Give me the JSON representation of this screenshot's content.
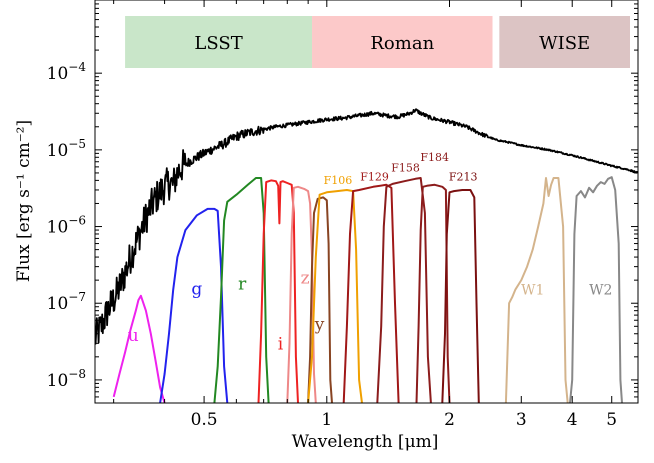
{
  "chart_data": {
    "type": "line",
    "xlabel": "Wavelength [μm]",
    "ylabel": "Flux [erg s⁻¹ cm⁻²]",
    "x_scale": "log",
    "y_scale": "log",
    "xlim": [
      0.27,
      5.8
    ],
    "ylim": [
      5e-09,
      0.0009
    ],
    "x_ticks": [
      {
        "value": 0.5,
        "label": "0.5"
      },
      {
        "value": 1,
        "label": "1"
      },
      {
        "value": 2,
        "label": "2"
      },
      {
        "value": 3,
        "label": "3"
      },
      {
        "value": 4,
        "label": "4"
      },
      {
        "value": 5,
        "label": "5"
      }
    ],
    "y_ticks": [
      {
        "value": 1e-08,
        "base": "10",
        "exp": "−8"
      },
      {
        "value": 1e-07,
        "base": "10",
        "exp": "−7"
      },
      {
        "value": 1e-06,
        "base": "10",
        "exp": "−6"
      },
      {
        "value": 1e-05,
        "base": "10",
        "exp": "−5"
      },
      {
        "value": 0.0001,
        "base": "10",
        "exp": "−4"
      }
    ],
    "bands": [
      {
        "label": "LSST",
        "x0": 0.32,
        "x1": 0.92,
        "color": "#c9e6c9"
      },
      {
        "label": "Roman",
        "x0": 0.92,
        "x1": 2.55,
        "color": "#fcc9c9"
      },
      {
        "label": "WISE",
        "x0": 2.65,
        "x1": 5.8,
        "color": "#dcc4c4"
      }
    ],
    "spectrum": {
      "color": "#000000",
      "x": [
        0.27,
        0.28,
        0.29,
        0.3,
        0.31,
        0.32,
        0.33,
        0.34,
        0.35,
        0.36,
        0.37,
        0.38,
        0.39,
        0.4,
        0.41,
        0.42,
        0.43,
        0.44,
        0.46,
        0.48,
        0.5,
        0.53,
        0.56,
        0.6,
        0.65,
        0.7,
        0.75,
        0.8,
        0.9,
        1.0,
        1.1,
        1.2,
        1.3,
        1.4,
        1.5,
        1.6,
        1.65,
        1.7,
        1.8,
        2.0,
        2.2,
        2.4,
        2.6,
        2.8,
        3.0,
        3.5,
        4.0,
        4.5,
        5.0,
        5.5,
        5.8
      ],
      "y": [
        3.5e-08,
        5e-08,
        8e-08,
        1.1e-07,
        1.6e-07,
        2.5e-07,
        4e-07,
        6e-07,
        9e-07,
        1.3e-06,
        1.8e-06,
        2.3e-06,
        2.8e-06,
        3.3e-06,
        3.7e-06,
        3.5e-06,
        5e-06,
        6e-06,
        7e-06,
        8e-06,
        9e-06,
        1.05e-05,
        1.2e-05,
        1.5e-05,
        1.7e-05,
        1.85e-05,
        2e-05,
        2.1e-05,
        2.3e-05,
        2.5e-05,
        2.6e-05,
        2.8e-05,
        3e-05,
        2.8e-05,
        2.7e-05,
        3e-05,
        3.3e-05,
        3e-05,
        2.6e-05,
        2.3e-05,
        2e-05,
        1.6e-05,
        1.35e-05,
        1.25e-05,
        1.15e-05,
        1e-05,
        8.5e-06,
        7.2e-06,
        6.2e-06,
        5.5e-06,
        5e-06
      ]
    },
    "filters": [
      {
        "name": "u",
        "color": "#ee22ee",
        "label_x": 0.335,
        "label_y": 3.2e-08,
        "label_size": 17,
        "x": [
          0.3,
          0.31,
          0.32,
          0.33,
          0.34,
          0.345,
          0.35,
          0.36,
          0.37,
          0.38,
          0.39,
          0.4
        ],
        "y": [
          6e-09,
          1.2e-08,
          2.3e-08,
          4.5e-08,
          8e-08,
          1.1e-07,
          1.25e-07,
          8e-08,
          4e-08,
          1.8e-08,
          8e-09,
          5e-09
        ]
      },
      {
        "name": "g",
        "color": "#2222ee",
        "label_x": 0.48,
        "label_y": 1.3e-07,
        "label_size": 17,
        "x": [
          0.39,
          0.4,
          0.41,
          0.42,
          0.43,
          0.45,
          0.48,
          0.51,
          0.53,
          0.54,
          0.55,
          0.56,
          0.57
        ],
        "y": [
          5e-09,
          1.2e-08,
          4e-08,
          1.5e-07,
          4e-07,
          9e-07,
          1.4e-06,
          1.7e-06,
          1.7e-06,
          1.6e-06,
          3e-07,
          1.5e-08,
          5e-09
        ]
      },
      {
        "name": "r",
        "color": "#228822",
        "label_x": 0.62,
        "label_y": 1.5e-07,
        "label_size": 17,
        "x": [
          0.53,
          0.54,
          0.55,
          0.56,
          0.57,
          0.6,
          0.64,
          0.67,
          0.69,
          0.7,
          0.71,
          0.72
        ],
        "y": [
          5e-09,
          1.5e-08,
          1.2e-07,
          1.2e-06,
          2.1e-06,
          2.6e-06,
          3.5e-06,
          4.3e-06,
          4.3e-06,
          1.5e-06,
          2e-08,
          5e-09
        ]
      },
      {
        "name": "i",
        "color": "#ee2222",
        "label_x": 0.77,
        "label_y": 2.5e-08,
        "label_size": 17,
        "x": [
          0.68,
          0.69,
          0.7,
          0.71,
          0.73,
          0.75,
          0.76,
          0.765,
          0.77,
          0.78,
          0.8,
          0.82,
          0.83,
          0.84,
          0.85
        ],
        "y": [
          5e-09,
          4e-08,
          8e-07,
          3.8e-06,
          4e-06,
          3.9e-06,
          3.4e-06,
          1.1e-06,
          3.8e-06,
          3.9e-06,
          3.7e-06,
          3.5e-06,
          1.5e-06,
          2e-08,
          5e-09
        ]
      },
      {
        "name": "z",
        "color": "#ee8888",
        "label_x": 0.885,
        "label_y": 1.8e-07,
        "label_size": 17,
        "x": [
          0.8,
          0.81,
          0.82,
          0.83,
          0.85,
          0.88,
          0.9,
          0.91,
          0.92,
          0.93,
          0.94
        ],
        "y": [
          5e-09,
          3e-08,
          8e-07,
          3.2e-06,
          3.3e-06,
          3.1e-06,
          2.9e-06,
          2e-06,
          4e-07,
          1.2e-08,
          5e-09
        ]
      },
      {
        "name": "y",
        "color": "#884422",
        "label_x": 0.96,
        "label_y": 4.5e-08,
        "label_size": 17,
        "x": [
          0.9,
          0.91,
          0.92,
          0.93,
          0.95,
          0.98,
          1.0,
          1.01,
          1.02,
          1.03
        ],
        "y": [
          5e-09,
          2e-08,
          3e-07,
          1.5e-06,
          2.3e-06,
          2.4e-06,
          2.2e-06,
          6e-07,
          1e-08,
          5e-09
        ]
      },
      {
        "name": "F106",
        "color": "#f0a000",
        "label_x": 1.065,
        "label_y": 3.6e-06,
        "label_size": 11,
        "x": [
          0.9,
          0.92,
          0.94,
          0.96,
          1.0,
          1.06,
          1.12,
          1.16,
          1.18,
          1.2,
          1.22
        ],
        "y": [
          5e-09,
          2e-08,
          4e-07,
          2.6e-06,
          2.8e-06,
          2.9e-06,
          3e-06,
          2.9e-06,
          5e-07,
          1e-08,
          5e-09
        ]
      },
      {
        "name": "F129",
        "color": "#a01818",
        "label_x": 1.31,
        "label_y": 4e-06,
        "label_size": 11,
        "x": [
          1.1,
          1.12,
          1.14,
          1.16,
          1.2,
          1.3,
          1.4,
          1.44,
          1.47,
          1.5
        ],
        "y": [
          5e-09,
          5e-08,
          8e-07,
          2.9e-06,
          3e-06,
          3.3e-06,
          3.5e-06,
          3.2e-06,
          1e-07,
          5e-09
        ]
      },
      {
        "name": "F158",
        "color": "#8c1c1c",
        "label_x": 1.56,
        "label_y": 5.2e-06,
        "label_size": 11,
        "x": [
          1.33,
          1.36,
          1.38,
          1.4,
          1.45,
          1.55,
          1.65,
          1.7,
          1.74,
          1.77,
          1.8
        ],
        "y": [
          5e-09,
          5e-08,
          1e-06,
          3.3e-06,
          3.6e-06,
          3.9e-06,
          4.2e-06,
          4.3e-06,
          1.5e-06,
          2e-08,
          5e-09
        ]
      },
      {
        "name": "F184",
        "color": "#8c1c1c",
        "label_x": 1.84,
        "label_y": 7.2e-06,
        "label_size": 11,
        "x": [
          1.66,
          1.68,
          1.7,
          1.72,
          1.76,
          1.84,
          1.92,
          1.96,
          1.98,
          2.0
        ],
        "y": [
          5e-09,
          5e-08,
          9e-07,
          3.3e-06,
          3.4e-06,
          3.5e-06,
          3.3e-06,
          3e-06,
          2e-08,
          5e-09
        ]
      },
      {
        "name": "F213",
        "color": "#7a1010",
        "label_x": 2.16,
        "label_y": 4e-06,
        "label_size": 11,
        "x": [
          1.92,
          1.95,
          1.97,
          2.0,
          2.05,
          2.15,
          2.25,
          2.3,
          2.33,
          2.36
        ],
        "y": [
          5e-09,
          4e-08,
          8e-07,
          2.8e-06,
          2.9e-06,
          3e-06,
          3e-06,
          2.4e-06,
          1e-07,
          5e-09
        ]
      },
      {
        "name": "W1",
        "color": "#d4b48c",
        "label_x": 3.2,
        "label_y": 1.3e-07,
        "label_size": 14,
        "x": [
          2.75,
          2.8,
          2.85,
          2.9,
          3.0,
          3.1,
          3.2,
          3.3,
          3.4,
          3.45,
          3.5,
          3.55,
          3.6,
          3.7,
          3.8,
          3.85,
          3.9
        ],
        "y": [
          5e-09,
          1e-07,
          1.2e-07,
          1.5e-07,
          2e-07,
          3e-07,
          5e-07,
          1e-06,
          2e-06,
          4.3e-06,
          2.5e-06,
          3.5e-06,
          4.3e-06,
          4.3e-06,
          1e-06,
          1e-08,
          5e-09
        ]
      },
      {
        "name": "W2",
        "color": "#888888",
        "label_x": 4.7,
        "label_y": 1.3e-07,
        "label_size": 14,
        "x": [
          3.95,
          4.0,
          4.05,
          4.1,
          4.2,
          4.3,
          4.4,
          4.5,
          4.6,
          4.7,
          4.8,
          4.9,
          5.0,
          5.1,
          5.2,
          5.25,
          5.3
        ],
        "y": [
          5e-09,
          1e-08,
          8e-07,
          2.5e-06,
          2.9e-06,
          2.4e-06,
          3.2e-06,
          2.8e-06,
          3.4e-06,
          3.8e-06,
          3.6e-06,
          4.2e-06,
          4.4e-06,
          3e-06,
          6e-07,
          1e-08,
          5e-09
        ]
      }
    ]
  }
}
